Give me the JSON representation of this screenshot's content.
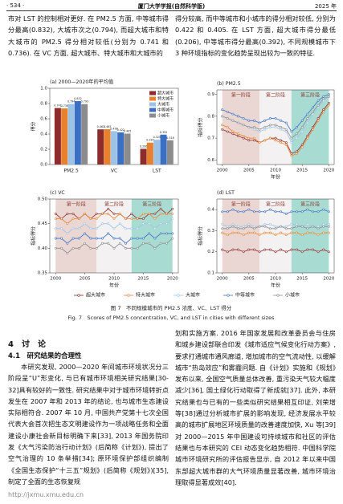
{
  "header": {
    "page": "· 534 ·",
    "journal": "厦门大学学报(自然科学版)",
    "year": "2025 年"
  },
  "top_text": {
    "left": "市对 LST 的控制相对更好. 在 PM2.5 方面, 中等城市得分最高(0.832), 大城市次之(0.794), 而超大城市和特大城市的 PM2.5 得分相对较低(分别为 0.741 和 0.736). 在 VC 方面, 超大城市、特大城市和大城市的",
    "right": "得分较高, 而中等城市和小城市的得分相对较低, 分别为 0.422 和 0.405. 在 LST 方面, 超大城市得分最低(0.206), 中等城市得分最高(0.392), 不同规模城市下 3 种环境指标的变化趋势呈现出较为一致的特征."
  },
  "chart_data": [
    {
      "type": "bar",
      "title": "(a) 2000—2020年的平均值",
      "y_label": "得分",
      "categories": [
        "PM2.5",
        "VC",
        "LST"
      ],
      "ylim": [
        0,
        1
      ],
      "yticks": [
        {
          "value": 0,
          "label": "0.0"
        },
        0.2,
        0.4,
        0.6,
        0.8,
        {
          "value": 1,
          "label": "1.0"
        }
      ],
      "legend": "upper right",
      "series": [
        {
          "name": "超大城市",
          "color": "#8e2b2b",
          "values": [
            0.741,
            0.461,
            0.206
          ]
        },
        {
          "name": "特大城市",
          "color": "#e8812d",
          "values": [
            0.736,
            0.463,
            0.287
          ]
        },
        {
          "name": "大城市",
          "color": "#9cc3e6",
          "values": [
            0.794,
            0.438,
            0.325
          ]
        },
        {
          "name": "中等城市",
          "color": "#3a6fc4",
          "values": [
            0.832,
            0.422,
            0.392
          ]
        },
        {
          "name": "小城市",
          "color": "#8c8c8c",
          "values": [
            0.793,
            0.405,
            0.318
          ]
        }
      ]
    },
    {
      "type": "line",
      "title": "(b) PM2.5",
      "x_label": "年份",
      "y_label": "指标得分",
      "x": [
        2000,
        2001,
        2002,
        2003,
        2004,
        2005,
        2006,
        2007,
        2008,
        2009,
        2010,
        2011,
        2012,
        2013,
        2014,
        2015,
        2016,
        2017,
        2018,
        2019,
        2020
      ],
      "xlim": [
        1999,
        2021
      ],
      "xticks": [
        2000,
        2005,
        2010,
        2015,
        2020
      ],
      "ylim": [
        0.58,
        0.92
      ],
      "yticks": [
        0.6,
        0.7,
        0.8,
        0.9
      ],
      "stages": [
        {
          "label": "第一阶段",
          "start": 2000,
          "end": 2007,
          "color": "#ead7d3"
        },
        {
          "label": "第二阶段",
          "start": 2007,
          "end": 2013,
          "color": "#f3f1f1"
        },
        {
          "label": "第三阶段",
          "start": 2013,
          "end": 2020,
          "color": "#a8dcd3"
        }
      ],
      "series": [
        {
          "name": "超大城市",
          "color": "#8e2b2b",
          "values": [
            0.74,
            0.73,
            0.72,
            0.71,
            0.7,
            0.69,
            0.69,
            0.68,
            0.69,
            0.7,
            0.7,
            0.69,
            0.68,
            0.63,
            0.64,
            0.67,
            0.71,
            0.75,
            0.79,
            0.83,
            0.86
          ]
        },
        {
          "name": "特大城市",
          "color": "#e8812d",
          "values": [
            0.76,
            0.75,
            0.73,
            0.72,
            0.71,
            0.7,
            0.7,
            0.68,
            0.69,
            0.7,
            0.69,
            0.68,
            0.67,
            0.62,
            0.63,
            0.66,
            0.7,
            0.74,
            0.78,
            0.82,
            0.85
          ]
        },
        {
          "name": "大城市",
          "color": "#9cc3e6",
          "values": [
            0.8,
            0.79,
            0.78,
            0.77,
            0.76,
            0.75,
            0.74,
            0.73,
            0.74,
            0.75,
            0.75,
            0.74,
            0.73,
            0.68,
            0.7,
            0.73,
            0.77,
            0.81,
            0.84,
            0.87,
            0.89
          ]
        },
        {
          "name": "中等城市",
          "color": "#3a6fc4",
          "values": [
            0.83,
            0.82,
            0.81,
            0.8,
            0.79,
            0.78,
            0.78,
            0.77,
            0.78,
            0.79,
            0.79,
            0.78,
            0.77,
            0.73,
            0.75,
            0.78,
            0.81,
            0.84,
            0.87,
            0.89,
            0.9
          ]
        },
        {
          "name": "小城市",
          "color": "#8c8c8c",
          "values": [
            0.8,
            0.79,
            0.78,
            0.77,
            0.76,
            0.75,
            0.75,
            0.74,
            0.75,
            0.76,
            0.76,
            0.75,
            0.74,
            0.7,
            0.72,
            0.75,
            0.79,
            0.82,
            0.85,
            0.88,
            0.89
          ]
        }
      ]
    },
    {
      "type": "line",
      "title": "(c) VC",
      "x_label": "年份",
      "y_label": "指标得分",
      "x": [
        2000,
        2001,
        2002,
        2003,
        2004,
        2005,
        2006,
        2007,
        2008,
        2009,
        2010,
        2011,
        2012,
        2013,
        2014,
        2015,
        2016,
        2017,
        2018,
        2019,
        2020
      ],
      "xlim": [
        1999,
        2021
      ],
      "xticks": [
        2000,
        2005,
        2010,
        2015,
        2020
      ],
      "ylim": [
        0.35,
        0.5
      ],
      "yticks": [
        0.35,
        {
          "value": 0.4,
          "label": "0.40"
        },
        0.45,
        {
          "value": 0.5,
          "label": "0.50"
        }
      ],
      "stages": [
        {
          "label": "第一阶段",
          "start": 2000,
          "end": 2007,
          "color": "#ead7d3"
        },
        {
          "label": "第二阶段",
          "start": 2007,
          "end": 2013,
          "color": "#f3f1f1"
        },
        {
          "label": "第三阶段",
          "start": 2013,
          "end": 2020,
          "color": "#a8dcd3"
        }
      ],
      "series": [
        {
          "name": "超大城市",
          "color": "#8e2b2b",
          "values": [
            0.47,
            0.46,
            0.47,
            0.47,
            0.46,
            0.47,
            0.46,
            0.47,
            0.47,
            0.48,
            0.47,
            0.47,
            0.46,
            0.47,
            0.46,
            0.46,
            0.47,
            0.47,
            0.48,
            0.47,
            0.48
          ]
        },
        {
          "name": "特大城市",
          "color": "#e8812d",
          "values": [
            0.46,
            0.46,
            0.45,
            0.46,
            0.46,
            0.47,
            0.46,
            0.46,
            0.47,
            0.47,
            0.46,
            0.47,
            0.46,
            0.46,
            0.46,
            0.47,
            0.47,
            0.46,
            0.47,
            0.47,
            0.47
          ]
        },
        {
          "name": "大城市",
          "color": "#9cc3e6",
          "values": [
            0.44,
            0.44,
            0.43,
            0.44,
            0.44,
            0.45,
            0.44,
            0.44,
            0.45,
            0.45,
            0.44,
            0.45,
            0.44,
            0.44,
            0.44,
            0.45,
            0.45,
            0.44,
            0.45,
            0.45,
            0.46
          ]
        },
        {
          "name": "中等城市",
          "color": "#3a6fc4",
          "values": [
            0.42,
            0.42,
            0.41,
            0.42,
            0.42,
            0.43,
            0.42,
            0.42,
            0.42,
            0.43,
            0.42,
            0.42,
            0.41,
            0.42,
            0.42,
            0.42,
            0.43,
            0.42,
            0.43,
            0.43,
            0.43
          ]
        },
        {
          "name": "小城市",
          "color": "#8c8c8c",
          "values": [
            0.4,
            0.4,
            0.39,
            0.4,
            0.4,
            0.41,
            0.4,
            0.4,
            0.41,
            0.41,
            0.4,
            0.41,
            0.4,
            0.4,
            0.4,
            0.41,
            0.41,
            0.4,
            0.41,
            0.41,
            0.42
          ]
        }
      ]
    },
    {
      "type": "line",
      "title": "(d) LST",
      "x_label": "年份",
      "y_label": "指标得分",
      "x": [
        2000,
        2001,
        2002,
        2003,
        2004,
        2005,
        2006,
        2007,
        2008,
        2009,
        2010,
        2011,
        2012,
        2013,
        2014,
        2015,
        2016,
        2017,
        2018,
        2019,
        2020
      ],
      "xlim": [
        1999,
        2021
      ],
      "xticks": [
        2000,
        2005,
        2010,
        2015,
        2020
      ],
      "ylim": [
        0.1,
        0.45
      ],
      "yticks": [
        0.1,
        0.2,
        0.3,
        0.4
      ],
      "stages": [
        {
          "label": "第一阶段",
          "start": 2000,
          "end": 2007,
          "color": "#ead7d3"
        },
        {
          "label": "第二阶段",
          "start": 2007,
          "end": 2013,
          "color": "#f3f1f1"
        },
        {
          "label": "第三阶段",
          "start": 2013,
          "end": 2020,
          "color": "#a8dcd3"
        }
      ],
      "series": [
        {
          "name": "超大城市",
          "color": "#8e2b2b",
          "values": [
            0.21,
            0.2,
            0.21,
            0.21,
            0.2,
            0.21,
            0.21,
            0.2,
            0.21,
            0.21,
            0.2,
            0.21,
            0.2,
            0.21,
            0.21,
            0.2,
            0.21,
            0.21,
            0.2,
            0.21,
            0.2
          ]
        },
        {
          "name": "特大城市",
          "color": "#e8812d",
          "values": [
            0.29,
            0.28,
            0.29,
            0.29,
            0.28,
            0.29,
            0.29,
            0.28,
            0.29,
            0.29,
            0.28,
            0.29,
            0.28,
            0.29,
            0.29,
            0.28,
            0.29,
            0.29,
            0.28,
            0.29,
            0.29
          ]
        },
        {
          "name": "大城市",
          "color": "#9cc3e6",
          "values": [
            0.33,
            0.32,
            0.33,
            0.32,
            0.32,
            0.33,
            0.32,
            0.32,
            0.33,
            0.33,
            0.32,
            0.32,
            0.32,
            0.33,
            0.33,
            0.32,
            0.33,
            0.32,
            0.32,
            0.33,
            0.33
          ]
        },
        {
          "name": "中等城市",
          "color": "#3a6fc4",
          "values": [
            0.39,
            0.39,
            0.4,
            0.39,
            0.39,
            0.4,
            0.39,
            0.39,
            0.39,
            0.4,
            0.39,
            0.39,
            0.38,
            0.39,
            0.39,
            0.39,
            0.4,
            0.39,
            0.39,
            0.4,
            0.39
          ]
        },
        {
          "name": "小城市",
          "color": "#8c8c8c",
          "values": [
            0.31,
            0.31,
            0.32,
            0.31,
            0.31,
            0.32,
            0.31,
            0.32,
            0.32,
            0.31,
            0.31,
            0.32,
            0.31,
            0.31,
            0.32,
            0.32,
            0.31,
            0.32,
            0.31,
            0.32,
            0.32
          ]
        }
      ]
    }
  ],
  "caption": {
    "cn": "图 7　不同规模城市的 PM2.5 浓度、VC、LST 得分",
    "en": "Fig. 7　Scores of PM2.5 concentration, VC, and LST in cities with different sizes"
  },
  "section": {
    "title": "4　讨　论",
    "subtitle": "4.1　研究结果的合理性",
    "left": "本研究发现, 2000—2020 年间城市环境状况分三阶段呈“U”形变化, 与已有城市环境相关研究结果[30-32]具有较好的一致性. 研究结果中对于城市环境转折点发生在 2007 年和 2013 年的结论, 也与城市生态建设实际相符合. 2007 年 10 月, 中国共产党第十七次全国代表大会首次把生态文明建设作为一项战略任务和全面建设小康社会新目标明确下来[33], 2013 年国务院印发《大气污染防治行动计划》(后简称《计划》), 提出了空气治理的 10 条举措[34]; 原环境保护部组织编制《全国生态保护“十三五”规划》(后简称《规划》)[35], 制定了全面的生态恢复规",
    "right": "划和实施方案. 2016 年国家发展和改革委员会与住房和城乡建设部联合印发《城市适应气候变化行动方案》, 要求打通城市通风廊道, 增加城市的空气流动性, 以缓解城市“热岛效应”和雾霾问题. 自《计划》实施和《规划》发布以来, 全国空气质量总体改善, 重污染天气较大幅度减少[36], 国土绿化行动取得了新成就[37]. 此外, 本研究结果也与已有的一些类似研究结果相互印证, 刘荣增等[38]通过分析城市扩展的影响发现, 经济发展水平较高的城市扩展地区环境质量的改善速度加快, Xu 等[39]对 2000—2015 年中国建设可持续城市和社区的评估结果也与本研究的 CEI 动态变化趋势相符. 中国科学院城市环境研究所的评估报告显示, 自 2012 年以来中国东部超大城市群的大气环境质量显著改善, 城市环境治理取得显著成效[40]."
  },
  "footer_url": "http://jxmu.xmu.edu.cn"
}
